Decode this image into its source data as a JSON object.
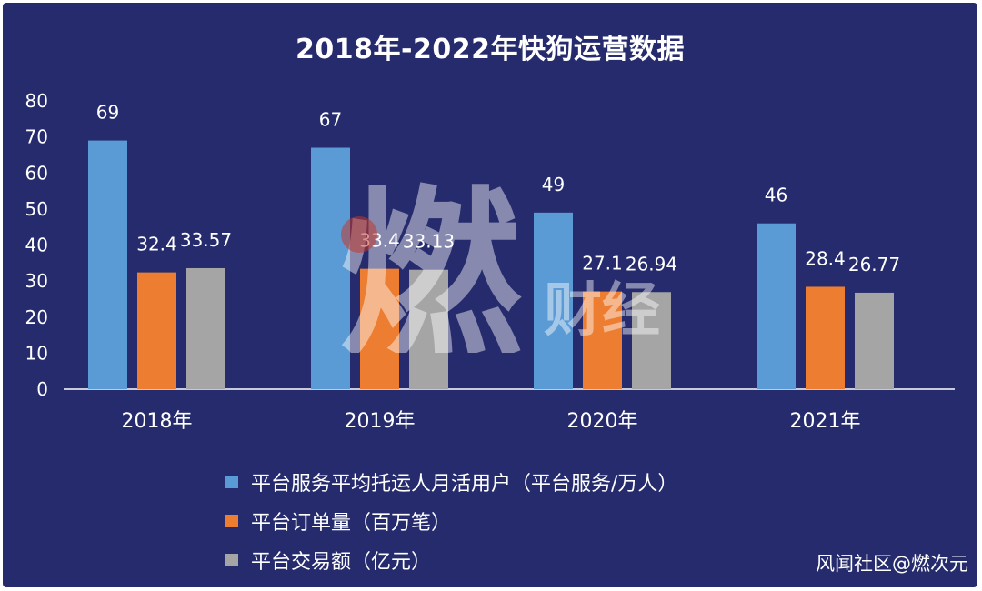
{
  "title": "2018年-2022年快狗运营数据",
  "chart_data": {
    "type": "bar",
    "categories": [
      "2018年",
      "2019年",
      "2020年",
      "2021年"
    ],
    "series": [
      {
        "name": "平台服务平均托运人月活用户（平台服务/万人）",
        "color": "#5b9bd5",
        "values": [
          69,
          67,
          49,
          46
        ]
      },
      {
        "name": "平台订单量（百万笔）",
        "color": "#ed7d31",
        "values": [
          32.4,
          33.4,
          27.1,
          28.4
        ]
      },
      {
        "name": "平台交易额（亿元）",
        "color": "#a5a5a5",
        "values": [
          33.57,
          33.13,
          26.94,
          26.77
        ]
      }
    ],
    "data_labels": [
      [
        "69",
        "67",
        "49",
        "46"
      ],
      [
        "32.4",
        "33.4",
        "27.1",
        "28.4"
      ],
      [
        "33.57",
        "33.13",
        "26.94",
        "26.77"
      ]
    ],
    "ylim": [
      0,
      80
    ],
    "yticks": [
      0,
      10,
      20,
      30,
      40,
      50,
      60,
      70,
      80
    ],
    "grid": false,
    "legend_position": "bottom-left"
  },
  "credit": "风闻社区@燃次元",
  "watermark": {
    "big": "燃",
    "small": "财经"
  }
}
